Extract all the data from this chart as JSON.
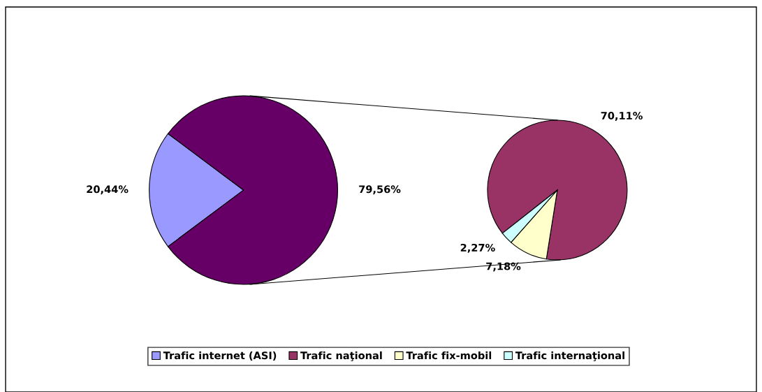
{
  "chart_data": [
    {
      "type": "pie",
      "categories": [
        "Trafic internet (ASI)",
        null
      ],
      "values": [
        20.44,
        79.56
      ],
      "colors": [
        "#9999ff",
        "#660066"
      ],
      "value_labels": [
        "20,44%",
        "79,56%"
      ],
      "legend": "bottom"
    },
    {
      "type": "pie",
      "categories": [
        "Trafic naţional",
        "Trafic fix-mobil",
        "Trafic internaţional"
      ],
      "values": [
        70.11,
        7.18,
        2.27
      ],
      "colors": [
        "#993366",
        "#ffffcc",
        "#ccffff"
      ],
      "value_labels": [
        "70,11%",
        "7,18%",
        "2,27%"
      ],
      "legend": "bottom"
    }
  ]
}
